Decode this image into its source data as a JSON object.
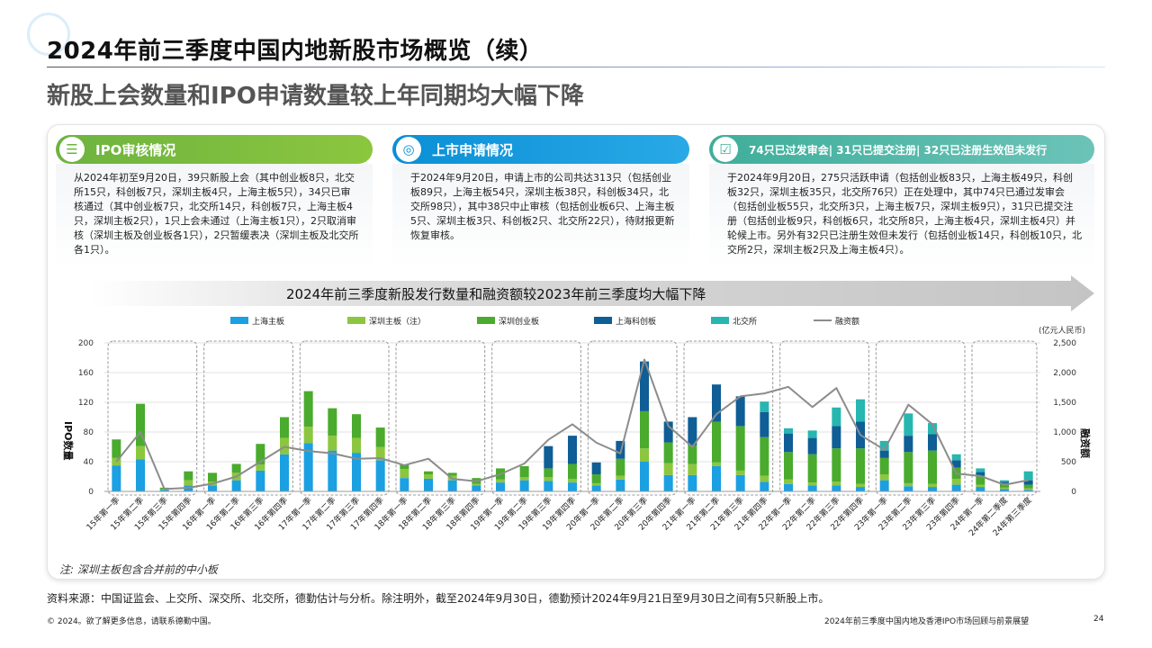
{
  "header": {
    "title": "2024年前三季度中国内地新股市场概览（续）",
    "subtitle": "新股上会数量和IPO申请数量较上年同期均大幅下降"
  },
  "cards": {
    "ipo_review": {
      "title": "IPO审核情况",
      "body": "从2024年初至9月20日，39只新股上会（其中创业板8只，北交所15只，科创板7只，深圳主板4只，上海主板5只），34只已审核通过（其中创业板7只，北交所14只，科创板7只，上海主板4只，深圳主板2只），1只上会未通过（上海主板1只），2只取消审核（深圳主板及创业板各1只），2只暂缓表决（深圳主板及北交所各1只）。"
    },
    "listing_applications": {
      "title": "上市申请情况",
      "body": "于2024年9月20日，申请上市的公司共达313只（包括创业板89只，上海主板54只，深圳主板38只，科创板34只，北交所98只），其中38只中止审核（包括创业板6只、上海主板5只、深圳主板3只、科创板2只、北交所22只），待财报更新恢复审核。"
    },
    "pipeline": {
      "title": "74只已过发审会| 31只已提交注册| 32只已注册生效但未发行",
      "body": "于2024年9月20日，275只活跃申请（包括创业板83只，上海主板49只，科创板32只，深圳主板35只，北交所76只）正在处理中，其中74只已通过发审会（包括创业板55只，北交所3只，上海主板7只，深圳主板9只），31只已提交注册（包括创业板9只，科创板6只，北交所8只，上海主板4只，深圳主板4只）并轮候上市。另外有32只已注册生效但未发行（包括创业板14只，科创板10只，北交所2只，深圳主板2只及上海主板4只）。"
    }
  },
  "banner": "2024年前三季度新股发行数量和融资额较2023年前三季度均大幅下降",
  "note": "注:  深圳主板包含合并前的中小板",
  "source": "资料来源：中国证监会、上交所、深交所、北交所，德勤估计与分析。除注明外，截至2024年9月30日，德勤预计2024年9月21日至9月30日之间有5只新股上市。",
  "footer": {
    "left": "© 2024。欲了解更多信息，请联系德勤中国。",
    "right": "2024年前三季度中国内地及香港IPO市场回顾与前景展望",
    "page": "24"
  },
  "chart_data": {
    "type": "bar",
    "stacked": true,
    "ylabel": "IPO数量",
    "y2label": "融资额",
    "y2unit": "(亿元人民币)",
    "ylim": [
      0,
      200
    ],
    "y2lim": [
      0,
      2500
    ],
    "yticks": [
      "0",
      "40",
      "80",
      "120",
      "160",
      "200"
    ],
    "y2ticks": [
      "0",
      "500",
      "1,000",
      "1,500",
      "2,000",
      "2,500"
    ],
    "categories": [
      "15年第一季",
      "15年第二季",
      "15年第三季",
      "15年第四季",
      "16年第一季",
      "16年第二季",
      "16年第三季",
      "16年第四季",
      "17年第一季",
      "17年第二季",
      "17年第三季",
      "17年第四季",
      "18年第一季",
      "18年第二季",
      "18年第三季",
      "18年第四季",
      "19年第一季",
      "19年第二季",
      "19年第三季",
      "19年第四季",
      "20年第一季",
      "20年第二季",
      "20年第三季",
      "20年第四季",
      "21年第一季",
      "21年第二季",
      "21年第三季",
      "21年第四季",
      "22年第一季",
      "22年第二季",
      "22年第三季",
      "22年第四季",
      "23年第一季",
      "23年第二季",
      "23年第三季",
      "23年第四季",
      "24年第一季",
      "24年第二季度",
      "24年第三季度"
    ],
    "series": [
      {
        "name": "上海主板",
        "color": "#1ba0e2",
        "values": [
          35,
          43,
          2,
          8,
          8,
          15,
          28,
          50,
          65,
          55,
          52,
          42,
          18,
          17,
          15,
          8,
          12,
          15,
          14,
          12,
          8,
          16,
          40,
          22,
          22,
          34,
          22,
          13,
          10,
          8,
          8,
          6,
          15,
          7,
          6,
          9,
          6,
          3,
          2
        ]
      },
      {
        "name": "深圳主板（注）",
        "color": "#8cc63f",
        "values": [
          10,
          18,
          1,
          7,
          5,
          10,
          8,
          22,
          22,
          20,
          20,
          18,
          12,
          6,
          6,
          2,
          4,
          4,
          5,
          5,
          3,
          5,
          18,
          16,
          15,
          5,
          6,
          8,
          6,
          4,
          5,
          4,
          8,
          4,
          4,
          8,
          3,
          2,
          2
        ]
      },
      {
        "name": "深圳创业板",
        "color": "#4aab2e",
        "values": [
          25,
          57,
          2,
          12,
          12,
          12,
          28,
          28,
          48,
          37,
          32,
          26,
          6,
          4,
          4,
          8,
          15,
          15,
          12,
          20,
          12,
          23,
          50,
          28,
          25,
          55,
          60,
          52,
          37,
          38,
          45,
          48,
          22,
          42,
          45,
          15,
          12,
          6,
          5
        ]
      },
      {
        "name": "上海科创板",
        "color": "#0f5e95",
        "values": [
          0,
          0,
          0,
          0,
          0,
          0,
          0,
          0,
          0,
          0,
          0,
          0,
          0,
          0,
          0,
          0,
          0,
          0,
          30,
          38,
          16,
          24,
          67,
          28,
          38,
          50,
          40,
          34,
          25,
          22,
          30,
          36,
          10,
          22,
          22,
          10,
          5,
          2,
          6
        ]
      },
      {
        "name": "北交所",
        "color": "#27b6b0",
        "values": [
          0,
          0,
          0,
          0,
          0,
          0,
          0,
          0,
          0,
          0,
          0,
          0,
          0,
          0,
          0,
          0,
          0,
          0,
          0,
          0,
          0,
          0,
          0,
          0,
          0,
          0,
          0,
          14,
          7,
          10,
          25,
          30,
          13,
          30,
          15,
          8,
          5,
          2,
          12
        ]
      }
    ],
    "line": {
      "name": "融资额",
      "color": "#8c8c8c",
      "values": [
        500,
        1000,
        40,
        60,
        130,
        250,
        500,
        750,
        680,
        640,
        550,
        560,
        440,
        550,
        210,
        170,
        290,
        470,
        870,
        1130,
        820,
        640,
        2220,
        1100,
        750,
        1300,
        1600,
        1650,
        1760,
        1420,
        1740,
        950,
        700,
        1460,
        1130,
        300,
        260,
        110,
        190
      ]
    }
  }
}
